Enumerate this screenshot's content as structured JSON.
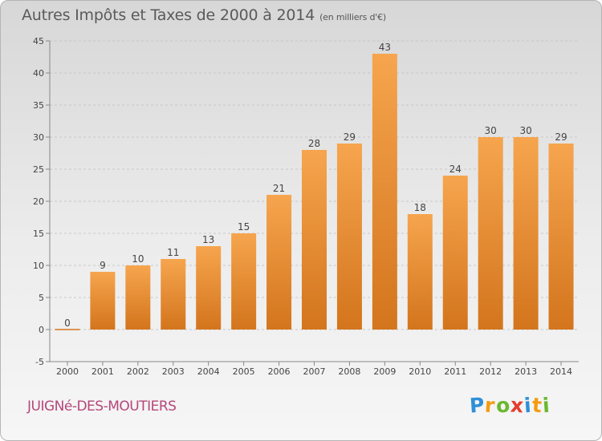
{
  "header": {
    "title": "Autres Impôts et Taxes de 2000 à 2014",
    "unit": "(en milliers d'€)"
  },
  "footer": {
    "city": "JUIGNé-DES-MOUTIERS",
    "brand": "Proxiti",
    "brand_letters": [
      "P",
      "r",
      "o",
      "x",
      "i",
      "t",
      "i"
    ],
    "brand_colors": [
      "#2f8fd6",
      "#f39c12",
      "#6ab82f",
      "#e23e2e",
      "#2f8fd6",
      "#f39c12",
      "#6ab82f"
    ]
  },
  "colors": {
    "bar_top": "#f6a54e",
    "bar_bottom": "#d3751d",
    "grid": "#c8c8c8",
    "axis": "#888888"
  },
  "chart_data": {
    "type": "bar",
    "title": "Autres Impôts et Taxes de 2000 à 2014",
    "subtitle": "(en milliers d'€)",
    "categories": [
      "2000",
      "2001",
      "2002",
      "2003",
      "2004",
      "2005",
      "2006",
      "2007",
      "2008",
      "2009",
      "2010",
      "2011",
      "2012",
      "2013",
      "2014"
    ],
    "values": [
      0,
      9,
      10,
      11,
      13,
      15,
      21,
      28,
      29,
      43,
      18,
      24,
      30,
      30,
      29
    ],
    "data_labels": [
      "0",
      "9",
      "10",
      "11",
      "13",
      "15",
      "21",
      "28",
      "29",
      "43",
      "18",
      "24",
      "30",
      "30",
      "29"
    ],
    "yticks": [
      -5,
      0,
      5,
      10,
      15,
      20,
      25,
      30,
      35,
      40,
      45
    ],
    "ytick_labels": [
      "-5",
      "0",
      "5",
      "10",
      "15",
      "20",
      "25",
      "30",
      "35",
      "40",
      "45"
    ],
    "ylim": [
      -5,
      45
    ],
    "grid": true,
    "xlabel": "",
    "ylabel": ""
  }
}
